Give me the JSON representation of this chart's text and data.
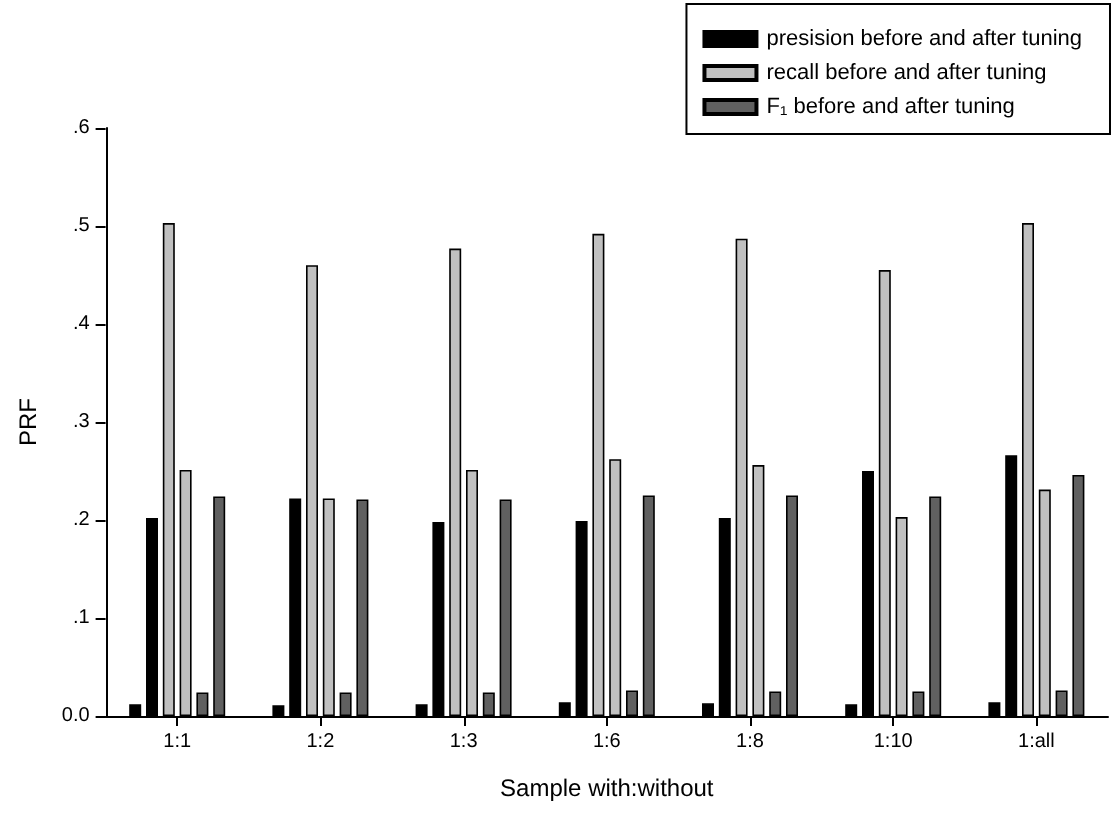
{
  "chart_data": {
    "type": "bar",
    "xlabel": "Sample with:without",
    "ylabel": "PRF",
    "categories": [
      "1:1",
      "1:2",
      "1:3",
      "1:6",
      "1:8",
      "1:10",
      "1:all"
    ],
    "series": [
      {
        "name": "presision before and after tuning",
        "color": "#000000",
        "values": [
          0.012,
          0.011,
          0.012,
          0.014,
          0.013,
          0.012,
          0.014
        ]
      },
      {
        "color": "#000000",
        "values": [
          0.202,
          0.222,
          0.198,
          0.199,
          0.202,
          0.25,
          0.266
        ]
      },
      {
        "name": "recall before and after tuning",
        "color": "#c0c0c0",
        "values": [
          0.503,
          0.46,
          0.477,
          0.492,
          0.487,
          0.455,
          0.503
        ]
      },
      {
        "color": "#c0c0c0",
        "values": [
          0.251,
          0.222,
          0.251,
          0.262,
          0.256,
          0.203,
          0.231
        ]
      },
      {
        "name": "F₁ before and after tuning",
        "color": "#606060",
        "values": [
          0.024,
          0.024,
          0.024,
          0.026,
          0.025,
          0.025,
          0.026
        ]
      },
      {
        "color": "#606060",
        "values": [
          0.224,
          0.221,
          0.221,
          0.225,
          0.225,
          0.224,
          0.246
        ]
      }
    ],
    "ylim": [
      0,
      0.6
    ],
    "yticks": [
      {
        "value": 0,
        "label": "0.0"
      },
      {
        "value": 0.1,
        "label": ".1"
      },
      {
        "value": 0.2,
        "label": ".2"
      },
      {
        "value": 0.3,
        "label": ".3"
      },
      {
        "value": 0.4,
        "label": ".4"
      },
      {
        "value": 0.5,
        "label": ".5"
      },
      {
        "value": 0.6,
        "label": ".6"
      }
    ],
    "grid": false,
    "legend": "top right"
  }
}
